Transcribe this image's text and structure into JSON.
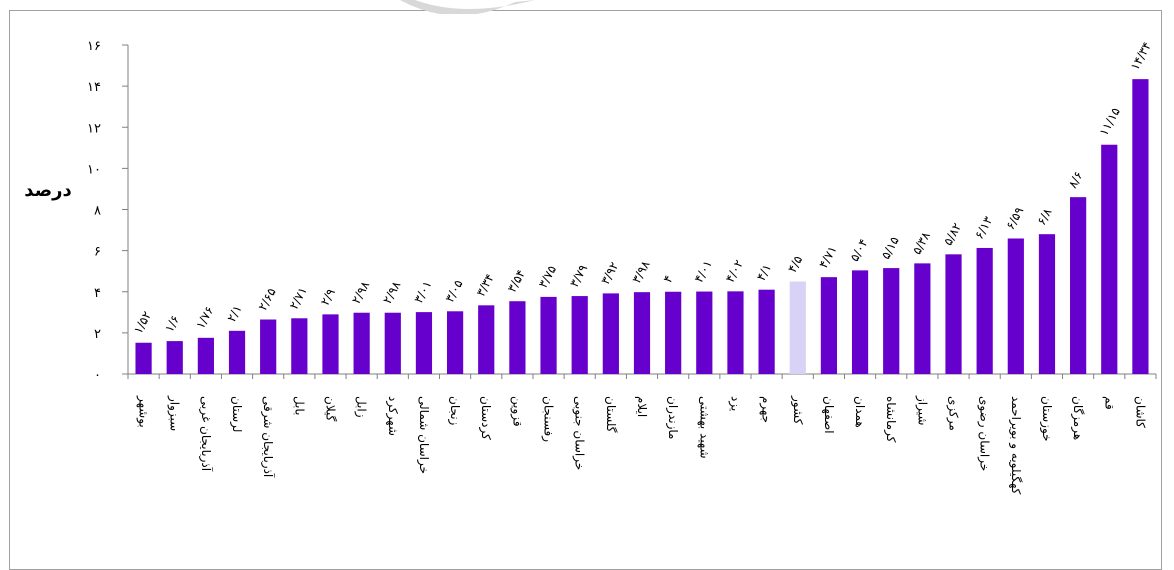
{
  "chart_data": {
    "type": "bar",
    "ylabel": "درصد",
    "ylim": [
      0,
      16
    ],
    "yticks": [
      "۰",
      "۲",
      "۴",
      "۶",
      "۸",
      "۱۰",
      "۱۲",
      "۱۴",
      "۱۶"
    ],
    "categories": [
      "بوشهر",
      "سبزوار",
      "آذربایجان غربی",
      "لرستان",
      "آذربایجان شرقی",
      "بابل",
      "گیلان",
      "زابل",
      "شهرکرد",
      "خراسان شمالی",
      "زنجان",
      "کردستان",
      "قزوین",
      "رفسنجان",
      "خراسان جنوبی",
      "گلستان",
      "ایلام",
      "مازندران",
      "شهید بهشتی",
      "یزد",
      "جهرم",
      "کشور",
      "اصفهان",
      "همدان",
      "کرمانشاه",
      "شیراز",
      "مرکزی",
      "خراسان رضوی",
      "کهگیلویه و بویراحمد",
      "خوزستان",
      "هرمزگان",
      "قم",
      "کاشان"
    ],
    "values": [
      1.52,
      1.6,
      1.76,
      2.1,
      2.65,
      2.71,
      2.9,
      2.98,
      2.98,
      3.01,
      3.05,
      3.34,
      3.54,
      3.75,
      3.79,
      3.92,
      3.98,
      4.0,
      4.01,
      4.02,
      4.1,
      4.5,
      4.71,
      5.04,
      5.15,
      5.38,
      5.82,
      6.13,
      6.59,
      6.8,
      8.6,
      11.15,
      14.34
    ],
    "data_labels": [
      "۱/۵۲",
      "۱/۶",
      "۱/۷۶",
      "۲/۱",
      "۲/۶۵",
      "۲/۷۱",
      "۲/۹",
      "۲/۹۸",
      "۲/۹۸",
      "۳/۰۱",
      "۳/۰۵",
      "۳/۳۴",
      "۳/۵۴",
      "۳/۷۵",
      "۳/۷۹",
      "۳/۹۲",
      "۳/۹۸",
      "۴",
      "۴/۰۱",
      "۴/۰۲",
      "۴/۱",
      "۴/۵",
      "۴/۷۱",
      "۵/۰۴",
      "۵/۱۵",
      "۵/۳۸",
      "۵/۸۲",
      "۶/۱۳",
      "۶/۵۹",
      "۶/۸",
      "۸/۶",
      "۱۱/۱۵",
      "۱۴/۳۴"
    ],
    "highlight_index": 21,
    "colors": {
      "bar": "#6600cc",
      "highlight": "#d9d2f7",
      "axis": "#808080"
    },
    "grid": false,
    "legend": "none"
  }
}
